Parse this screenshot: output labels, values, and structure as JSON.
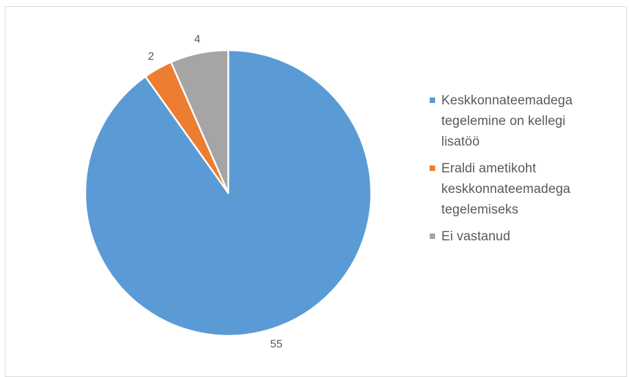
{
  "chart_data": {
    "type": "pie",
    "categories": [
      "Keskkonnateemadega tegelemine on kellegi lisatöö",
      "Eraldi ametikoht keskkonnateemadega tegelemiseks",
      "Ei vastanud"
    ],
    "values": [
      55,
      2,
      4
    ],
    "data_labels": [
      "55",
      "2",
      "4"
    ],
    "colors": [
      "#5b9bd5",
      "#ed7d31",
      "#a5a5a5"
    ],
    "legend_position": "right",
    "legend_lines": [
      [
        "Keskkonnateemadega",
        "tegelemine on kellegi",
        "lisatöö"
      ],
      [
        "Eraldi ametikoht",
        "keskkonnateemadega",
        "tegelemiseks"
      ],
      [
        "Ei vastanud"
      ]
    ]
  }
}
